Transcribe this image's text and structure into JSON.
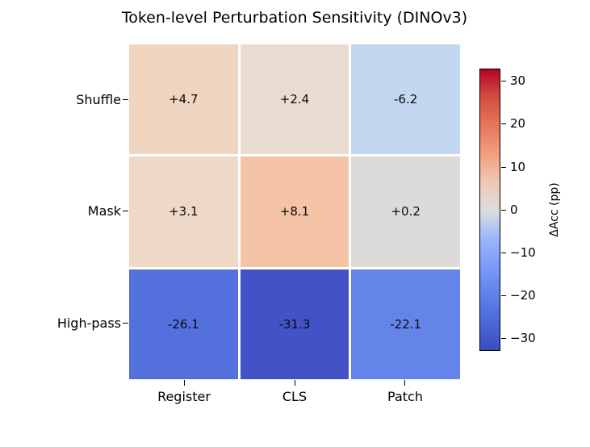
{
  "title": "Token-level Perturbation Sensitivity (DINOv3)",
  "chart_data": {
    "type": "heatmap",
    "title": "Token-level Perturbation Sensitivity (DINOv3)",
    "rows": [
      "Shuffle",
      "Mask",
      "High-pass"
    ],
    "columns": [
      "Register",
      "CLS",
      "Patch"
    ],
    "values": [
      [
        4.7,
        2.4,
        -6.2
      ],
      [
        3.1,
        8.1,
        0.2
      ],
      [
        -26.1,
        -31.3,
        -22.1
      ]
    ],
    "cell_labels": [
      [
        "+4.7",
        "+2.4",
        "-6.2"
      ],
      [
        "+3.1",
        "+8.1",
        "+0.2"
      ],
      [
        "-26.1",
        "-31.3",
        "-22.1"
      ]
    ],
    "cell_colors": [
      [
        "#f0d5c0",
        "#ebdcd2",
        "#c4d7f0"
      ],
      [
        "#eed8c7",
        "#f5c3a5",
        "#dcdbda"
      ],
      [
        "#5470dd",
        "#4153c6",
        "#6484ea"
      ]
    ],
    "colormap": "coolwarm",
    "grid": false,
    "colorbar": {
      "label": "ΔAcc (pp)",
      "ticks": [
        "30",
        "20",
        "10",
        "0",
        "−10",
        "−20",
        "−30"
      ],
      "tick_values": [
        30,
        20,
        10,
        0,
        -10,
        -20,
        -30
      ],
      "vmin": -33,
      "vmax": 33,
      "gradient_top_to_bottom": [
        "#b40426",
        "#e5765b",
        "#f29e7f",
        "#f0c8b2",
        "#dddddd",
        "#9cb8fc",
        "#7a9bf6",
        "#6182ea",
        "#3b4cc0"
      ]
    }
  }
}
